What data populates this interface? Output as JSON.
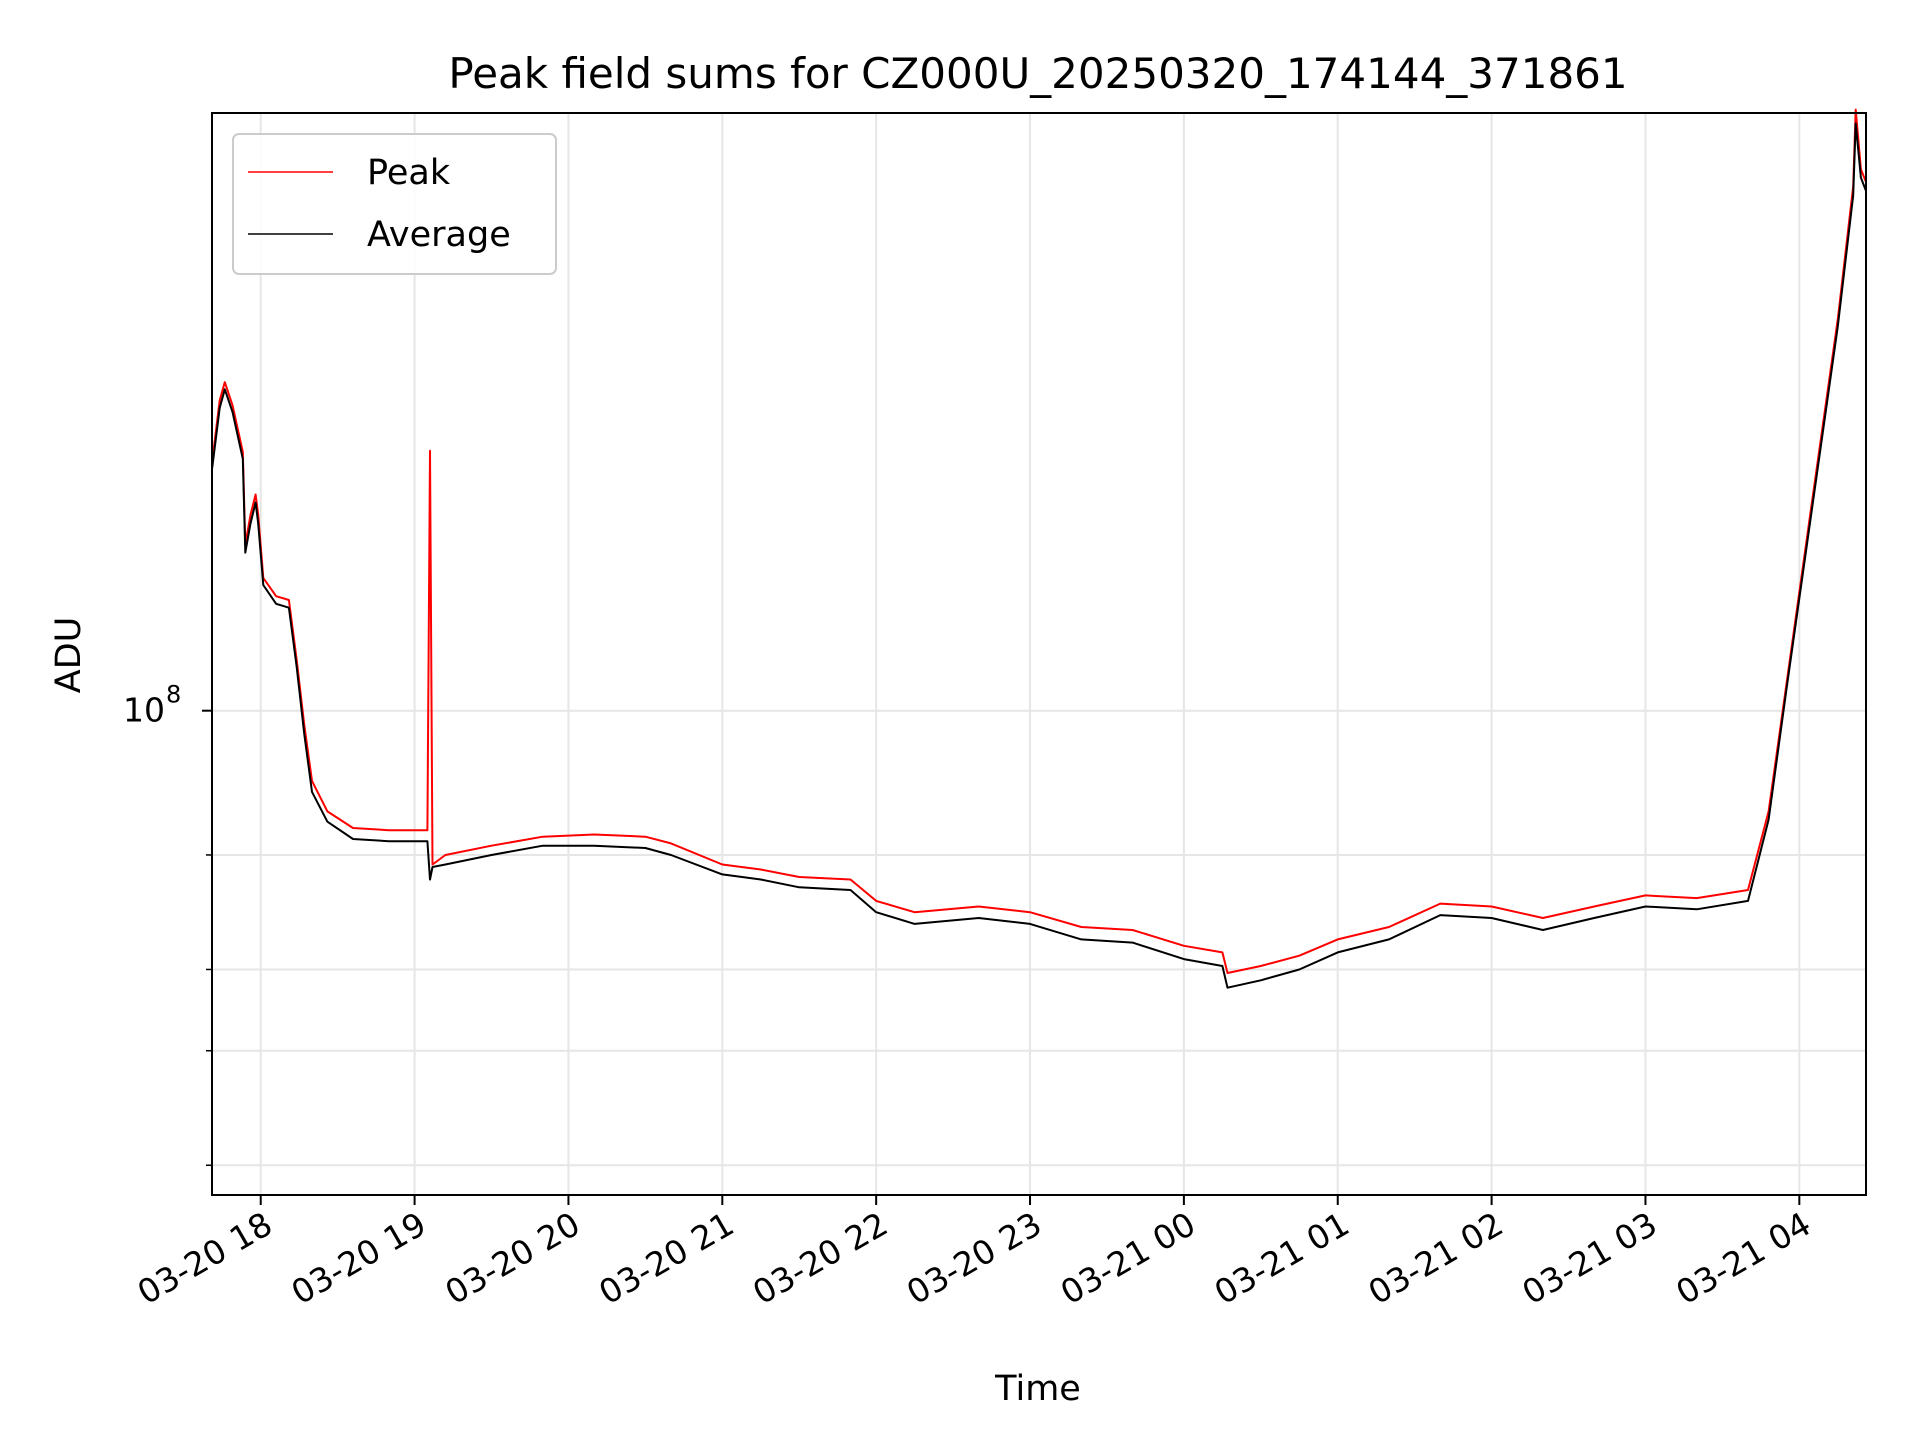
{
  "chart_data": {
    "type": "line",
    "title": "Peak field sums for CZ000U_20250320_174144_371861",
    "xlabel": "Time",
    "ylabel": "ADU",
    "yscale": "log",
    "xlim": [
      "2025-03-20 17:41",
      "2025-03-21 04:26"
    ],
    "ylim": [
      18000000,
      830000000
    ],
    "grid": true,
    "legend_position": "upper left",
    "x_ticks": [
      {
        "t": "2025-03-20 18:00",
        "label": "03-20 18"
      },
      {
        "t": "2025-03-20 19:00",
        "label": "03-20 19"
      },
      {
        "t": "2025-03-20 20:00",
        "label": "03-20 20"
      },
      {
        "t": "2025-03-20 21:00",
        "label": "03-20 21"
      },
      {
        "t": "2025-03-20 22:00",
        "label": "03-20 22"
      },
      {
        "t": "2025-03-20 23:00",
        "label": "03-20 23"
      },
      {
        "t": "2025-03-21 00:00",
        "label": "03-21 00"
      },
      {
        "t": "2025-03-21 01:00",
        "label": "03-21 01"
      },
      {
        "t": "2025-03-21 02:00",
        "label": "03-21 02"
      },
      {
        "t": "2025-03-21 03:00",
        "label": "03-21 03"
      },
      {
        "t": "2025-03-21 04:00",
        "label": "03-21 04"
      }
    ],
    "y_major_ticks": [
      {
        "value": 100000000,
        "label": "10",
        "exponent": "8"
      }
    ],
    "y_minor_ticks": [
      20000000,
      30000000,
      40000000,
      60000000
    ],
    "series": [
      {
        "name": "Peak",
        "color": "#ff0000",
        "points": [
          [
            "2025-03-20 17:41",
            240000000
          ],
          [
            "2025-03-20 17:44",
            300000000
          ],
          [
            "2025-03-20 17:46",
            320000000
          ],
          [
            "2025-03-20 17:49",
            295000000
          ],
          [
            "2025-03-20 17:53",
            250000000
          ],
          [
            "2025-03-20 17:54",
            180000000
          ],
          [
            "2025-03-20 17:56",
            200000000
          ],
          [
            "2025-03-20 17:58",
            215000000
          ],
          [
            "2025-03-20 17:59",
            200000000
          ],
          [
            "2025-03-20 18:01",
            160000000
          ],
          [
            "2025-03-20 18:06",
            150000000
          ],
          [
            "2025-03-20 18:11",
            148000000
          ],
          [
            "2025-03-20 18:14",
            120000000
          ],
          [
            "2025-03-20 18:17",
            95000000
          ],
          [
            "2025-03-20 18:20",
            78000000
          ],
          [
            "2025-03-20 18:26",
            70000000
          ],
          [
            "2025-03-20 18:36",
            66000000
          ],
          [
            "2025-03-20 18:50",
            65500000
          ],
          [
            "2025-03-20 19:05",
            65500000
          ],
          [
            "2025-03-20 19:06",
            251000000
          ],
          [
            "2025-03-20 19:07",
            58000000
          ],
          [
            "2025-03-20 19:12",
            60000000
          ],
          [
            "2025-03-20 19:30",
            62000000
          ],
          [
            "2025-03-20 19:50",
            64000000
          ],
          [
            "2025-03-20 20:10",
            64500000
          ],
          [
            "2025-03-20 20:30",
            64000000
          ],
          [
            "2025-03-20 20:40",
            62500000
          ],
          [
            "2025-03-20 21:00",
            58000000
          ],
          [
            "2025-03-20 21:15",
            57000000
          ],
          [
            "2025-03-20 21:30",
            55500000
          ],
          [
            "2025-03-20 21:50",
            55000000
          ],
          [
            "2025-03-20 22:00",
            51000000
          ],
          [
            "2025-03-20 22:15",
            49000000
          ],
          [
            "2025-03-20 22:40",
            50000000
          ],
          [
            "2025-03-20 23:00",
            49000000
          ],
          [
            "2025-03-20 23:20",
            46500000
          ],
          [
            "2025-03-20 23:40",
            46000000
          ],
          [
            "2025-03-21 00:00",
            43500000
          ],
          [
            "2025-03-21 00:15",
            42500000
          ],
          [
            "2025-03-21 00:17",
            39500000
          ],
          [
            "2025-03-21 00:30",
            40500000
          ],
          [
            "2025-03-21 00:45",
            42000000
          ],
          [
            "2025-03-21 01:00",
            44500000
          ],
          [
            "2025-03-21 01:20",
            46500000
          ],
          [
            "2025-03-21 01:40",
            50500000
          ],
          [
            "2025-03-21 02:00",
            50000000
          ],
          [
            "2025-03-21 02:20",
            48000000
          ],
          [
            "2025-03-21 02:40",
            50000000
          ],
          [
            "2025-03-21 03:00",
            52000000
          ],
          [
            "2025-03-21 03:20",
            51500000
          ],
          [
            "2025-03-21 03:40",
            53000000
          ],
          [
            "2025-03-21 03:48",
            70000000
          ],
          [
            "2025-03-21 03:55",
            110000000
          ],
          [
            "2025-03-21 04:05",
            210000000
          ],
          [
            "2025-03-21 04:15",
            400000000
          ],
          [
            "2025-03-21 04:21",
            640000000
          ],
          [
            "2025-03-21 04:22",
            840000000
          ],
          [
            "2025-03-21 04:24",
            680000000
          ],
          [
            "2025-03-21 04:26",
            650000000
          ]
        ]
      },
      {
        "name": "Average",
        "color": "#000000",
        "points": [
          [
            "2025-03-20 17:41",
            235000000
          ],
          [
            "2025-03-20 17:44",
            292000000
          ],
          [
            "2025-03-20 17:46",
            312000000
          ],
          [
            "2025-03-20 17:49",
            288000000
          ],
          [
            "2025-03-20 17:53",
            244000000
          ],
          [
            "2025-03-20 17:54",
            175000000
          ],
          [
            "2025-03-20 17:56",
            194000000
          ],
          [
            "2025-03-20 17:58",
            209000000
          ],
          [
            "2025-03-20 17:59",
            194000000
          ],
          [
            "2025-03-20 18:01",
            156000000
          ],
          [
            "2025-03-20 18:06",
            146000000
          ],
          [
            "2025-03-20 18:11",
            144000000
          ],
          [
            "2025-03-20 18:14",
            117000000
          ],
          [
            "2025-03-20 18:17",
            92000000
          ],
          [
            "2025-03-20 18:20",
            75000000
          ],
          [
            "2025-03-20 18:26",
            67500000
          ],
          [
            "2025-03-20 18:36",
            63500000
          ],
          [
            "2025-03-20 18:50",
            63000000
          ],
          [
            "2025-03-20 19:05",
            63000000
          ],
          [
            "2025-03-20 19:06",
            55000000
          ],
          [
            "2025-03-20 19:07",
            57500000
          ],
          [
            "2025-03-20 19:12",
            58000000
          ],
          [
            "2025-03-20 19:30",
            60000000
          ],
          [
            "2025-03-20 19:50",
            62000000
          ],
          [
            "2025-03-20 20:10",
            62000000
          ],
          [
            "2025-03-20 20:30",
            61500000
          ],
          [
            "2025-03-20 20:40",
            60000000
          ],
          [
            "2025-03-20 21:00",
            56000000
          ],
          [
            "2025-03-20 21:15",
            55000000
          ],
          [
            "2025-03-20 21:30",
            53500000
          ],
          [
            "2025-03-20 21:50",
            53000000
          ],
          [
            "2025-03-20 22:00",
            49000000
          ],
          [
            "2025-03-20 22:15",
            47000000
          ],
          [
            "2025-03-20 22:40",
            48000000
          ],
          [
            "2025-03-20 23:00",
            47000000
          ],
          [
            "2025-03-20 23:20",
            44500000
          ],
          [
            "2025-03-20 23:40",
            44000000
          ],
          [
            "2025-03-21 00:00",
            41500000
          ],
          [
            "2025-03-21 00:15",
            40500000
          ],
          [
            "2025-03-21 00:17",
            37500000
          ],
          [
            "2025-03-21 00:30",
            38500000
          ],
          [
            "2025-03-21 00:45",
            40000000
          ],
          [
            "2025-03-21 01:00",
            42500000
          ],
          [
            "2025-03-21 01:20",
            44500000
          ],
          [
            "2025-03-21 01:40",
            48500000
          ],
          [
            "2025-03-21 02:00",
            48000000
          ],
          [
            "2025-03-21 02:20",
            46000000
          ],
          [
            "2025-03-21 02:40",
            48000000
          ],
          [
            "2025-03-21 03:00",
            50000000
          ],
          [
            "2025-03-21 03:20",
            49500000
          ],
          [
            "2025-03-21 03:40",
            51000000
          ],
          [
            "2025-03-21 03:48",
            68000000
          ],
          [
            "2025-03-21 03:55",
            108000000
          ],
          [
            "2025-03-21 04:05",
            205000000
          ],
          [
            "2025-03-21 04:15",
            390000000
          ],
          [
            "2025-03-21 04:21",
            620000000
          ],
          [
            "2025-03-21 04:22",
            800000000
          ],
          [
            "2025-03-21 04:24",
            660000000
          ],
          [
            "2025-03-21 04:26",
            630000000
          ]
        ]
      }
    ]
  }
}
